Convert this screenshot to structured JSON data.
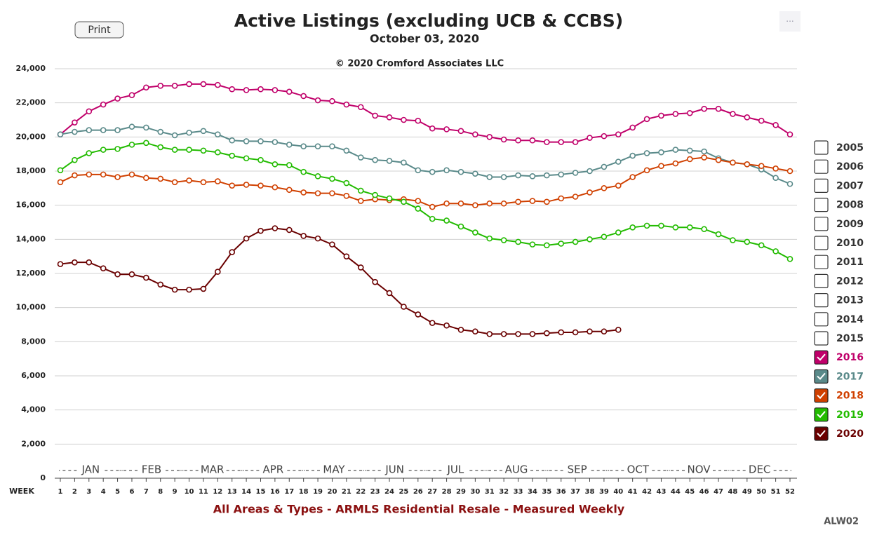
{
  "chart_data": {
    "type": "line",
    "title": "Active Listings (excluding UCB & CCBS)",
    "subtitle": "October 03, 2020",
    "copyright": "© 2020 Cromford Associates LLC",
    "footer": "All Areas & Types - ARMLS Residential Resale - Measured Weekly",
    "code": "ALW02",
    "print_button": "Print",
    "menu_button": "···",
    "xlabel": "WEEK",
    "months": [
      "JAN",
      "FEB",
      "MAR",
      "APR",
      "MAY",
      "JUN",
      "JUL",
      "AUG",
      "SEP",
      "OCT",
      "NOV",
      "DEC"
    ],
    "x": [
      1,
      2,
      3,
      4,
      5,
      6,
      7,
      8,
      9,
      10,
      11,
      12,
      13,
      14,
      15,
      16,
      17,
      18,
      19,
      20,
      21,
      22,
      23,
      24,
      25,
      26,
      27,
      28,
      29,
      30,
      31,
      32,
      33,
      34,
      35,
      36,
      37,
      38,
      39,
      40,
      41,
      42,
      43,
      44,
      45,
      46,
      47,
      48,
      49,
      50,
      51,
      52
    ],
    "xlim": [
      1,
      52
    ],
    "xticks": [
      1,
      2,
      3,
      4,
      5,
      6,
      7,
      8,
      9,
      10,
      11,
      12,
      13,
      14,
      15,
      16,
      17,
      18,
      19,
      20,
      21,
      22,
      23,
      24,
      25,
      26,
      27,
      28,
      29,
      30,
      31,
      32,
      33,
      34,
      35,
      36,
      37,
      38,
      39,
      40,
      41,
      42,
      43,
      44,
      45,
      46,
      47,
      48,
      49,
      50,
      51,
      52
    ],
    "ylim": [
      0,
      24000
    ],
    "yticks": [
      0,
      {
        "value": 2000,
        "label": "2,000"
      },
      {
        "value": 4000,
        "label": "4,000"
      },
      {
        "value": 6000,
        "label": "6,000"
      },
      {
        "value": 8000,
        "label": "8,000"
      },
      {
        "value": 10000,
        "label": "10,000"
      },
      {
        "value": 12000,
        "label": "12,000"
      },
      {
        "value": 14000,
        "label": "14,000"
      },
      {
        "value": 16000,
        "label": "16,000"
      },
      {
        "value": 18000,
        "label": "18,000"
      },
      {
        "value": 20000,
        "label": "20,000"
      },
      {
        "value": 22000,
        "label": "22,000"
      },
      {
        "value": 24000,
        "label": "24,000"
      }
    ],
    "grid": true,
    "legend_position": "right",
    "hidden_series": [
      "2005",
      "2006",
      "2007",
      "2008",
      "2009",
      "2010",
      "2011",
      "2012",
      "2013",
      "2014",
      "2015"
    ],
    "series": [
      {
        "name": "2016",
        "color": "#c0006a",
        "values": [
          20150,
          20850,
          21500,
          21900,
          22250,
          22450,
          22900,
          23000,
          23000,
          23100,
          23100,
          23050,
          22800,
          22750,
          22800,
          22750,
          22650,
          22400,
          22150,
          22100,
          21900,
          21750,
          21250,
          21150,
          21000,
          20950,
          20500,
          20450,
          20350,
          20150,
          20000,
          19850,
          19800,
          19800,
          19700,
          19700,
          19700,
          19950,
          20050,
          20150,
          20550,
          21050,
          21250,
          21350,
          21400,
          21650,
          21650,
          21350,
          21150,
          20950,
          20700,
          20150
        ]
      },
      {
        "name": "2017",
        "color": "#5a8a8a",
        "values": [
          20150,
          20300,
          20400,
          20400,
          20400,
          20600,
          20550,
          20300,
          20100,
          20250,
          20350,
          20150,
          19800,
          19750,
          19750,
          19700,
          19550,
          19450,
          19450,
          19450,
          19200,
          18800,
          18650,
          18600,
          18500,
          18050,
          17950,
          18050,
          17950,
          17850,
          17650,
          17650,
          17750,
          17700,
          17750,
          17800,
          17900,
          18000,
          18250,
          18550,
          18900,
          19050,
          19100,
          19250,
          19200,
          19150,
          18750,
          18500,
          18400,
          18100,
          17600,
          17250
        ]
      },
      {
        "name": "2018",
        "color": "#d04000",
        "values": [
          17350,
          17750,
          17800,
          17800,
          17650,
          17800,
          17600,
          17550,
          17350,
          17450,
          17350,
          17400,
          17150,
          17200,
          17150,
          17050,
          16900,
          16750,
          16700,
          16700,
          16550,
          16250,
          16350,
          16300,
          16350,
          16250,
          15900,
          16100,
          16100,
          16000,
          16100,
          16100,
          16200,
          16250,
          16200,
          16400,
          16500,
          16750,
          17000,
          17150,
          17650,
          18050,
          18300,
          18450,
          18700,
          18800,
          18650,
          18500,
          18400,
          18300,
          18150,
          18000
        ]
      },
      {
        "name": "2019",
        "color": "#22bb00",
        "values": [
          18050,
          18650,
          19050,
          19250,
          19300,
          19550,
          19650,
          19400,
          19250,
          19250,
          19200,
          19100,
          18900,
          18750,
          18650,
          18400,
          18350,
          17950,
          17700,
          17550,
          17300,
          16850,
          16600,
          16400,
          16200,
          15800,
          15200,
          15100,
          14750,
          14400,
          14050,
          13950,
          13850,
          13700,
          13650,
          13750,
          13850,
          14000,
          14150,
          14400,
          14700,
          14800,
          14800,
          14700,
          14700,
          14600,
          14300,
          13950,
          13850,
          13650,
          13300,
          12850
        ]
      },
      {
        "name": "2020",
        "color": "#6a0000",
        "values": [
          12550,
          12650,
          12650,
          12300,
          11950,
          11950,
          11750,
          11350,
          11050,
          11050,
          11100,
          12100,
          13250,
          14050,
          14500,
          14650,
          14550,
          14200,
          14050,
          13700,
          13000,
          12350,
          11500,
          10850,
          10050,
          9600,
          9100,
          8950,
          8700,
          8600,
          8450,
          8450,
          8450,
          8450,
          8500,
          8550,
          8550,
          8600,
          8600,
          8700,
          null,
          null,
          null,
          null,
          null,
          null,
          null,
          null,
          null,
          null,
          null,
          null
        ]
      }
    ]
  }
}
